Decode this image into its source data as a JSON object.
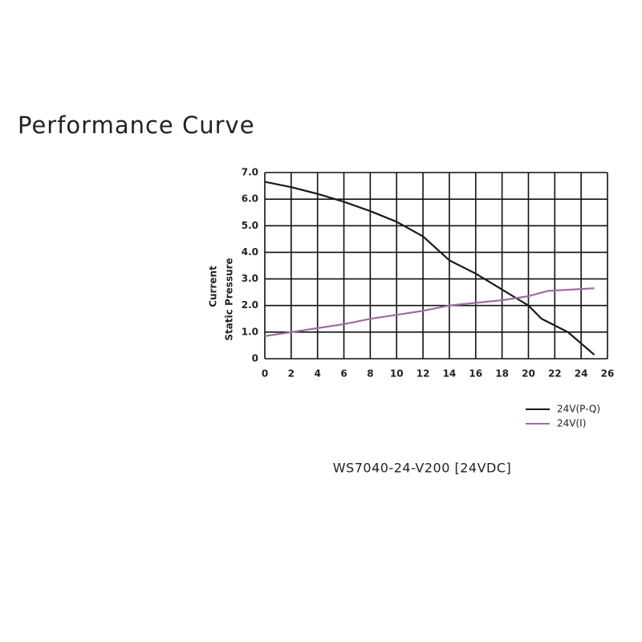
{
  "chart_data": {
    "type": "line",
    "title": "Performance Curve",
    "caption": "WS7040-24-V200  [24VDC]",
    "y_label": [
      "Current",
      "Static Pressure"
    ],
    "xlim": [
      0,
      26
    ],
    "xticks": [
      0,
      2,
      4,
      6,
      8,
      10,
      12,
      14,
      16,
      18,
      20,
      22,
      24,
      26
    ],
    "ylim": [
      0,
      7
    ],
    "yticks": [
      0,
      {
        "value": 1,
        "label": "1.0"
      },
      {
        "value": 2,
        "label": "2.0"
      },
      {
        "value": 3,
        "label": "3.0"
      },
      {
        "value": 4,
        "label": "4.0"
      },
      {
        "value": 5,
        "label": "5.0"
      },
      {
        "value": 6,
        "label": "6.0"
      },
      {
        "value": 7,
        "label": "7.0"
      }
    ],
    "grid": true,
    "series": [
      {
        "name": "24V(P-Q)",
        "color": "#1a1a1a",
        "x": [
          0,
          2,
          4,
          6,
          8,
          10,
          12,
          14,
          16,
          18,
          20,
          21,
          23,
          25
        ],
        "values": [
          6.65,
          6.45,
          6.2,
          5.9,
          5.55,
          5.15,
          4.6,
          3.7,
          3.2,
          2.6,
          2.0,
          1.5,
          1.0,
          0.15
        ]
      },
      {
        "name": "24V(I)",
        "color": "#a3699d",
        "x": [
          0,
          2,
          4,
          6,
          8,
          10,
          12,
          14,
          16,
          18,
          20,
          21.5,
          25
        ],
        "values": [
          0.85,
          1.0,
          1.15,
          1.3,
          1.5,
          1.65,
          1.8,
          2.0,
          2.1,
          2.2,
          2.35,
          2.55,
          2.65
        ]
      }
    ]
  }
}
